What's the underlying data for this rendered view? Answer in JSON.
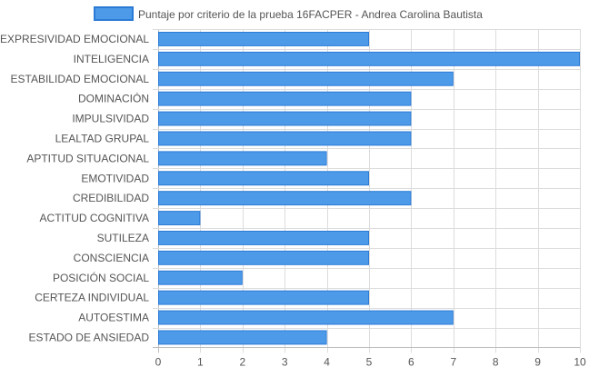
{
  "chart_data": {
    "type": "bar",
    "orientation": "horizontal",
    "legend_position": "top-center",
    "grid": true,
    "xlim": [
      0,
      10
    ],
    "x_ticks": [
      "0",
      "1",
      "2",
      "3",
      "4",
      "5",
      "6",
      "7",
      "8",
      "9",
      "10"
    ],
    "categories": [
      "EXPRESIVIDAD EMOCIONAL",
      "INTELIGENCIA",
      "ESTABILIDAD EMOCIONAL",
      "DOMINACIÓN",
      "IMPULSIVIDAD",
      "LEALTAD GRUPAL",
      "APTITUD SITUACIONAL",
      "EMOTIVIDAD",
      "CREDIBILIDAD",
      "ACTITUD COGNITIVA",
      "SUTILEZA",
      "CONSCIENCIA",
      "POSICIÓN SOCIAL",
      "CERTEZA INDIVIDUAL",
      "AUTOESTIMA",
      "ESTADO DE ANSIEDAD"
    ],
    "series": [
      {
        "name": "Puntaje por criterio de la prueba 16FACPER - Andrea Carolina Bautista",
        "values": [
          5,
          10,
          7,
          6,
          6,
          6,
          4,
          5,
          6,
          1,
          5,
          5,
          2,
          5,
          7,
          4
        ],
        "color": "#4d9ae9",
        "border_color": "#2b7bd6"
      }
    ],
    "grid_color": "#dcdcdc",
    "axis_color": "#bdbdbd",
    "label_color": "#555555"
  }
}
